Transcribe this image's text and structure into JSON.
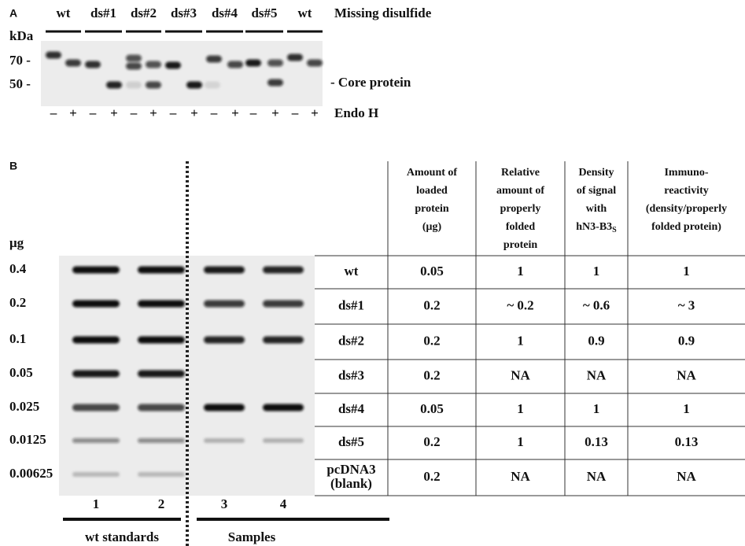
{
  "panel_a": {
    "label": "A",
    "lanes": [
      "wt",
      "ds#1",
      "ds#2",
      "ds#3",
      "ds#4",
      "ds#5",
      "wt"
    ],
    "lanes_title": "Missing disulfide",
    "unit": "kDa",
    "markers": [
      "70 -",
      "50 -"
    ],
    "core_label": "- Core protein",
    "endo_signs": [
      "–",
      "+",
      "–",
      "+",
      "–",
      "+",
      "–",
      "+",
      "–",
      "+",
      "–",
      "+",
      "–",
      "+"
    ],
    "endo_label": "Endo H"
  },
  "panel_b": {
    "label": "B",
    "unit": "μg",
    "amounts": [
      "0.4",
      "0.2",
      "0.1",
      "0.05",
      "0.025",
      "0.0125",
      "0.00625"
    ],
    "lane_numbers": [
      "1",
      "2",
      "3",
      "4"
    ],
    "groups": [
      "wt standards",
      "Samples"
    ],
    "table": {
      "headers": [
        [
          "Amount of",
          "loaded",
          "protein",
          "(μg)"
        ],
        [
          "Relative",
          "amount of",
          "properly",
          "folded",
          "protein"
        ],
        [
          "Density",
          "of signal",
          "with"
        ],
        [
          "Immuno-",
          "reactivity",
          "(density/properly",
          "folded  protein)"
        ]
      ],
      "density_last": {
        "text": "hN3-B3",
        "sub": "S"
      },
      "rows": [
        [
          [
            "wt"
          ],
          "0.05",
          "1",
          "1",
          "1"
        ],
        [
          [
            "ds#1"
          ],
          "0.2",
          "~ 0.2",
          "~ 0.6",
          "~ 3"
        ],
        [
          [
            "ds#2"
          ],
          "0.2",
          "1",
          "0.9",
          "0.9"
        ],
        [
          [
            "ds#3"
          ],
          "0.2",
          "NA",
          "NA",
          "NA"
        ],
        [
          [
            "ds#4"
          ],
          "0.05",
          "1",
          "1",
          "1"
        ],
        [
          [
            "ds#5"
          ],
          "0.2",
          "1",
          "0.13",
          "0.13"
        ],
        [
          [
            "pcDNA3",
            "(blank)"
          ],
          "0.2",
          "NA",
          "NA",
          "NA"
        ]
      ]
    }
  }
}
